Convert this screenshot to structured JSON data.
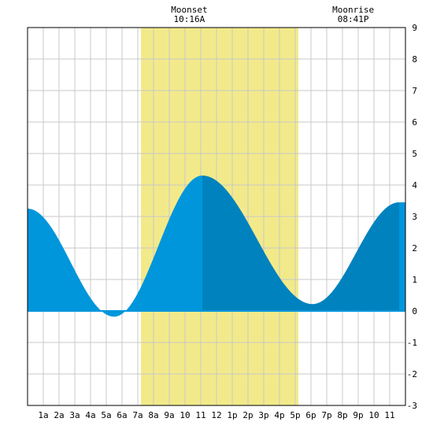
{
  "chart_data": {
    "type": "area",
    "title": "",
    "xlabel": "",
    "ylabel": "",
    "xlim": [
      0,
      24
    ],
    "ylim": [
      -3,
      9
    ],
    "x_tick_labels": [
      "1a",
      "2a",
      "3a",
      "4a",
      "5a",
      "6a",
      "7a",
      "8a",
      "9a",
      "10",
      "11",
      "12",
      "1p",
      "2p",
      "3p",
      "4p",
      "5p",
      "6p",
      "7p",
      "8p",
      "9p",
      "10",
      "11"
    ],
    "y_tick_labels": [
      "-3",
      "-2",
      "-1",
      "0",
      "1",
      "2",
      "3",
      "4",
      "5",
      "6",
      "7",
      "8",
      "9"
    ],
    "grid": true,
    "highlight_band": {
      "from_hour": 7.2,
      "to_hour": 17.2,
      "color": "#f2ea8a"
    },
    "events": [
      {
        "name": "Moonset",
        "time": "10:16A",
        "hour": 10.27
      },
      {
        "name": "Moonrise",
        "time": "08:41P",
        "hour": 20.68
      }
    ],
    "series": [
      {
        "x": [
          0.0,
          5.5,
          11.1,
          18.1,
          23.6,
          24.0
        ],
        "y": [
          3.25,
          -0.18,
          4.3,
          0.22,
          3.45,
          3.45
        ]
      }
    ],
    "split_hours": [
      11.1,
      23.6
    ],
    "colors": {
      "light": "#0096dc",
      "dark": "#0082be",
      "grid": "#c8c8c8",
      "axis": "#000000"
    }
  }
}
